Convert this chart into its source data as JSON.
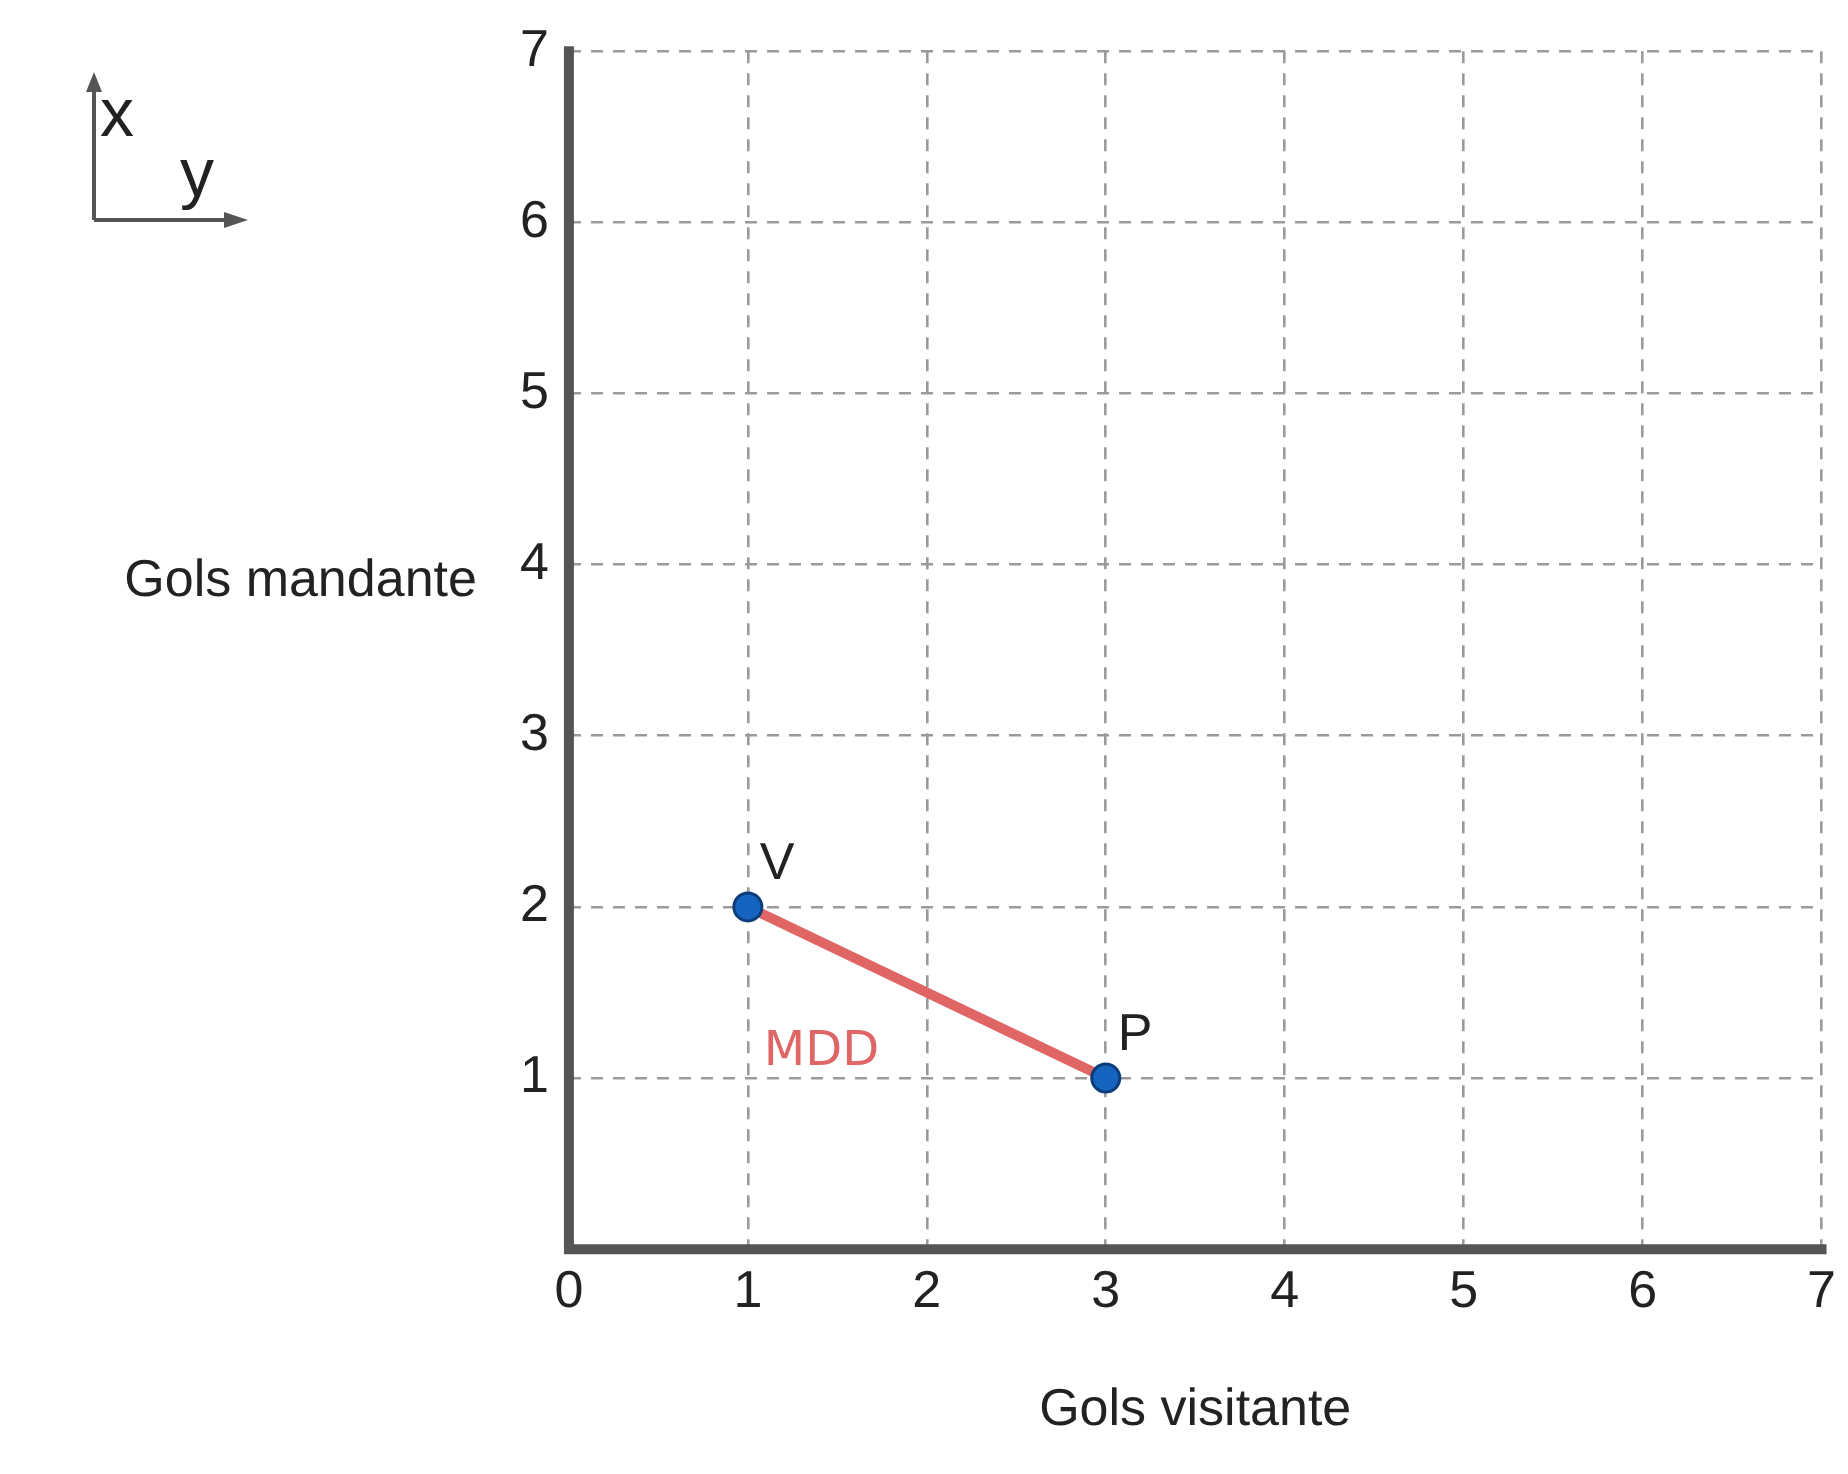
{
  "chart_data": {
    "type": "scatter",
    "xlabel": "Gols visitante",
    "ylabel": "Gols mandante",
    "x": [
      1,
      3
    ],
    "xlim": [
      0,
      7
    ],
    "ylim": [
      0,
      7
    ],
    "xticks": [
      0,
      1,
      2,
      3,
      4,
      5,
      6,
      7
    ],
    "yticks": [
      {
        "value": 0,
        "label": null
      },
      1,
      2,
      3,
      4,
      5,
      6,
      7
    ],
    "grid": true,
    "legend": false,
    "series": [
      {
        "type": "line",
        "name": "MDD",
        "color": "#e06666",
        "values": [
          2,
          1
        ],
        "marker": "none",
        "line_style": "solid"
      },
      {
        "type": "scatter",
        "color": "#1565c0",
        "values": [
          2,
          1
        ],
        "marker": "circle"
      }
    ],
    "annotations": [
      "x",
      "y",
      {
        "text": "V",
        "x": 1,
        "y": 2
      },
      {
        "text": "P",
        "x": 3,
        "y": 1
      }
    ]
  }
}
